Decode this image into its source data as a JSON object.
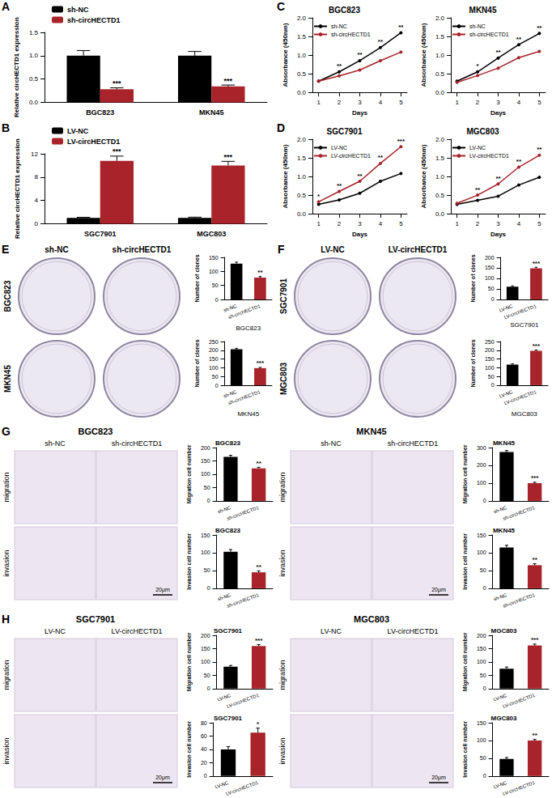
{
  "chart_data": [
    {
      "panel": "A",
      "type": "bar",
      "ylabel": "Relative circHECTD1 expression",
      "categories": [
        "BGC823",
        "MKN45"
      ],
      "series": [
        {
          "name": "sh-NC",
          "color": "#000000",
          "values": [
            1.0,
            1.0
          ],
          "errors": [
            0.11,
            0.09
          ]
        },
        {
          "name": "sh-circHECTD1",
          "color": "#a8232a",
          "values": [
            0.28,
            0.34
          ],
          "errors": [
            0.03,
            0.03
          ],
          "annotations": [
            "***",
            "***"
          ]
        }
      ],
      "ylim": [
        0,
        1.5
      ],
      "yticks": [
        {
          "value": 0,
          "label": "0.0"
        },
        0.5,
        {
          "value": 1,
          "label": "1.0"
        },
        1.5
      ],
      "grid": false,
      "legend": "upper left"
    },
    {
      "panel": "B",
      "type": "bar",
      "ylabel": "Relative circHECTD1 expression",
      "categories": [
        "SGC7901",
        "MGC803"
      ],
      "series": [
        {
          "name": "LV-NC",
          "color": "#000000",
          "values": [
            1.0,
            1.0
          ],
          "errors": [
            0.1,
            0.12
          ]
        },
        {
          "name": "LV-circHECTD1",
          "color": "#a8232a",
          "values": [
            10.8,
            10.0
          ],
          "errors": [
            0.8,
            0.7
          ],
          "annotations": [
            "***",
            "***"
          ]
        }
      ],
      "ylim": [
        0,
        12
      ],
      "yticks": [
        0,
        4,
        8,
        12
      ],
      "grid": false,
      "legend": "upper left"
    },
    {
      "panel": "C",
      "type": "line",
      "title": "BGC823",
      "xlabel": "Days",
      "ylabel": "Absorbance (450nm)",
      "x": [
        1,
        2,
        3,
        4,
        5
      ],
      "series": [
        {
          "name": "sh-NC",
          "color": "#000000",
          "marker": "circle",
          "values": [
            0.3,
            0.55,
            0.85,
            1.2,
            1.6
          ]
        },
        {
          "name": "sh-circHECTD1",
          "color": "#a8232a",
          "marker": "circle",
          "values": [
            0.3,
            0.44,
            0.6,
            0.85,
            1.08
          ]
        }
      ],
      "annotations": [
        null,
        "**",
        "**",
        "**",
        "**"
      ],
      "xlim": [
        0.7,
        5.3
      ],
      "xticks": [
        1,
        2,
        3,
        4,
        5
      ],
      "ylim": [
        0,
        2
      ],
      "yticks": [
        {
          "value": 0,
          "label": "0.0"
        },
        0.5,
        {
          "value": 1,
          "label": "1.0"
        },
        1.5,
        {
          "value": 2,
          "label": "2.0"
        }
      ],
      "grid": false,
      "legend": "upper left"
    },
    {
      "type": "line",
      "title": "MKN45",
      "xlabel": "Days",
      "ylabel": "Absorbance (450nm)",
      "x": [
        1,
        2,
        3,
        4,
        5
      ],
      "series": [
        {
          "name": "sh-NC",
          "color": "#000000",
          "marker": "circle",
          "values": [
            0.3,
            0.55,
            0.92,
            1.28,
            1.58
          ]
        },
        {
          "name": "sh-circHECTD1",
          "color": "#a8232a",
          "marker": "circle",
          "values": [
            0.27,
            0.45,
            0.65,
            0.93,
            1.1
          ]
        }
      ],
      "annotations": [
        null,
        "*",
        "**",
        "**",
        "**"
      ],
      "xlim": [
        0.7,
        5.3
      ],
      "xticks": [
        1,
        2,
        3,
        4,
        5
      ],
      "ylim": [
        0,
        2
      ],
      "yticks": [
        {
          "value": 0,
          "label": "0.0"
        },
        0.5,
        {
          "value": 1,
          "label": "1.0"
        },
        1.5,
        {
          "value": 2,
          "label": "2.0"
        }
      ],
      "grid": false,
      "legend": "upper left"
    },
    {
      "panel": "D",
      "type": "line",
      "title": "SGC7901",
      "xlabel": "Days",
      "ylabel": "Absorbance (450nm)",
      "x": [
        1,
        2,
        3,
        4,
        5
      ],
      "series": [
        {
          "name": "LV-NC",
          "color": "#000000",
          "marker": "circle",
          "values": [
            0.25,
            0.37,
            0.55,
            0.87,
            1.08
          ]
        },
        {
          "name": "LV-circHECTD1",
          "color": "#a8232a",
          "marker": "circle",
          "values": [
            0.32,
            0.6,
            0.87,
            1.35,
            1.8
          ]
        }
      ],
      "annotations": [
        "*",
        "**",
        "**",
        "**",
        "***"
      ],
      "xlim": [
        0.7,
        5.3
      ],
      "xticks": [
        1,
        2,
        3,
        4,
        5
      ],
      "ylim": [
        0,
        2
      ],
      "yticks": [
        {
          "value": 0,
          "label": "0.0"
        },
        0.5,
        {
          "value": 1,
          "label": "1.0"
        },
        1.5,
        {
          "value": 2,
          "label": "2.0"
        }
      ],
      "grid": false,
      "legend": "upper left"
    },
    {
      "type": "line",
      "title": "MGC803",
      "xlabel": "Days",
      "ylabel": "Absorbance (450nm)",
      "x": [
        1,
        2,
        3,
        4,
        5
      ],
      "series": [
        {
          "name": "LV-NC",
          "color": "#000000",
          "marker": "circle",
          "values": [
            0.25,
            0.36,
            0.47,
            0.77,
            0.98
          ]
        },
        {
          "name": "LV-circHECTD1",
          "color": "#a8232a",
          "marker": "circle",
          "values": [
            0.28,
            0.5,
            0.8,
            1.25,
            1.57
          ]
        }
      ],
      "annotations": [
        null,
        "**",
        "**",
        "**",
        "**"
      ],
      "xlim": [
        0.7,
        5.3
      ],
      "xticks": [
        1,
        2,
        3,
        4,
        5
      ],
      "ylim": [
        0,
        2
      ],
      "yticks": [
        {
          "value": 0,
          "label": "0.0"
        },
        0.5,
        {
          "value": 1,
          "label": "1.0"
        },
        1.5,
        {
          "value": 2,
          "label": "2.0"
        }
      ],
      "grid": false,
      "legend": "upper left"
    },
    {
      "type": "bar",
      "xlabel": "BGC823",
      "ylabel": "Number of clones",
      "categories": [
        "sh-NC",
        "sh-circHECTD1"
      ],
      "values": [
        128,
        78
      ],
      "errors": [
        5,
        4
      ],
      "colors": [
        "#000000",
        "#a8232a"
      ],
      "annotations": [
        null,
        "**"
      ],
      "ylim": [
        0,
        150
      ],
      "yticks": [
        0,
        50,
        100,
        150
      ],
      "grid": false
    },
    {
      "type": "bar",
      "xlabel": "MKN45",
      "ylabel": "Number of clones",
      "categories": [
        "sh-NC",
        "sh-circHECTD1"
      ],
      "values": [
        206,
        98
      ],
      "errors": [
        5,
        4
      ],
      "colors": [
        "#000000",
        "#a8232a"
      ],
      "annotations": [
        null,
        "***"
      ],
      "ylim": [
        0,
        250
      ],
      "yticks": [
        0,
        50,
        100,
        150,
        200,
        250
      ],
      "grid": false
    },
    {
      "type": "bar",
      "xlabel": "SGC7901",
      "ylabel": "Number of clones",
      "categories": [
        "LV-NC",
        "LV-circHECTD1"
      ],
      "values": [
        60,
        148
      ],
      "errors": [
        4,
        5
      ],
      "colors": [
        "#000000",
        "#a8232a"
      ],
      "annotations": [
        null,
        "***"
      ],
      "ylim": [
        0,
        200
      ],
      "yticks": [
        0,
        50,
        100,
        150,
        200
      ],
      "grid": false
    },
    {
      "type": "bar",
      "xlabel": "MGC803",
      "ylabel": "Number of clones",
      "categories": [
        "LV-NC",
        "LV-circHECTD1"
      ],
      "values": [
        118,
        197
      ],
      "errors": [
        4,
        4
      ],
      "colors": [
        "#000000",
        "#a8232a"
      ],
      "annotations": [
        null,
        "***"
      ],
      "ylim": [
        0,
        250
      ],
      "yticks": [
        0,
        50,
        100,
        150,
        200,
        250
      ],
      "grid": false
    },
    {
      "type": "bar",
      "title": "BGC823",
      "ylabel": "Migration cell number",
      "categories": [
        "sh-NC",
        "sh-circHECTD1"
      ],
      "values": [
        165,
        122
      ],
      "errors": [
        6,
        4
      ],
      "colors": [
        "#000000",
        "#a8232a"
      ],
      "annotations": [
        null,
        "**"
      ],
      "ylim": [
        0,
        200
      ],
      "yticks": [
        0,
        50,
        100,
        150,
        200
      ],
      "grid": false
    },
    {
      "type": "bar",
      "title": "BGC823",
      "ylabel": "Invasion cell number",
      "categories": [
        "sh-NC",
        "sh-circHECTD1"
      ],
      "values": [
        103,
        45
      ],
      "errors": [
        6,
        4
      ],
      "colors": [
        "#000000",
        "#a8232a"
      ],
      "annotations": [
        null,
        "**"
      ],
      "ylim": [
        0,
        150
      ],
      "yticks": [
        0,
        50,
        100,
        150
      ],
      "grid": false
    },
    {
      "type": "bar",
      "title": "MKN45",
      "ylabel": "Migration cell number",
      "categories": [
        "sh-NC",
        "sh-circHECTD1"
      ],
      "values": [
        275,
        100
      ],
      "errors": [
        8,
        5
      ],
      "colors": [
        "#000000",
        "#a8232a"
      ],
      "annotations": [
        null,
        "***"
      ],
      "ylim": [
        0,
        300
      ],
      "yticks": [
        0,
        100,
        200,
        300
      ],
      "grid": false
    },
    {
      "type": "bar",
      "title": "MKN45",
      "ylabel": "Invasion cell number",
      "categories": [
        "sh-NC",
        "sh-circHECTD1"
      ],
      "values": [
        115,
        65
      ],
      "errors": [
        6,
        4
      ],
      "colors": [
        "#000000",
        "#a8232a"
      ],
      "annotations": [
        null,
        "**"
      ],
      "ylim": [
        0,
        150
      ],
      "yticks": [
        0,
        50,
        100,
        150
      ],
      "grid": false
    },
    {
      "type": "bar",
      "title": "SGC7901",
      "ylabel": "Migration cell number",
      "categories": [
        "LV-NC",
        "LV-circHECTD1"
      ],
      "values": [
        82,
        160
      ],
      "errors": [
        5,
        5
      ],
      "colors": [
        "#000000",
        "#a8232a"
      ],
      "annotations": [
        null,
        "***"
      ],
      "ylim": [
        0,
        200
      ],
      "yticks": [
        0,
        50,
        100,
        150,
        200
      ],
      "grid": false
    },
    {
      "type": "bar",
      "title": "SGC7901",
      "ylabel": "Invasion cell number",
      "categories": [
        "LV-NC",
        "LV-circHECTD1"
      ],
      "values": [
        40,
        65
      ],
      "errors": [
        4,
        7
      ],
      "colors": [
        "#000000",
        "#a8232a"
      ],
      "annotations": [
        null,
        "*"
      ],
      "ylim": [
        0,
        80
      ],
      "yticks": [
        0,
        20,
        40,
        60,
        80
      ],
      "grid": false
    },
    {
      "type": "bar",
      "title": "MGC803",
      "ylabel": "Migration cell number",
      "categories": [
        "LV-NC",
        "LV-circHECTD1"
      ],
      "values": [
        75,
        162
      ],
      "errors": [
        6,
        5
      ],
      "colors": [
        "#000000",
        "#a8232a"
      ],
      "annotations": [
        null,
        "***"
      ],
      "ylim": [
        0,
        200
      ],
      "yticks": [
        0,
        50,
        100,
        150,
        200
      ],
      "grid": false
    },
    {
      "type": "bar",
      "title": "MGC803",
      "ylabel": "Invasion cell number",
      "categories": [
        "LV-NC",
        "LV-circHECTD1"
      ],
      "values": [
        48,
        100
      ],
      "errors": [
        4,
        3
      ],
      "colors": [
        "#000000",
        "#a8232a"
      ],
      "annotations": [
        null,
        "**"
      ],
      "ylim": [
        0,
        150
      ],
      "yticks": [
        0,
        50,
        100,
        150
      ],
      "grid": false
    }
  ],
  "image_panels": [
    {
      "panel": "E",
      "kind": "plate",
      "columns": [
        "sh-NC",
        "sh-circHECTD1"
      ],
      "rows": [
        "BGC823",
        "MKN45"
      ]
    },
    {
      "panel": "F",
      "kind": "plate",
      "columns": [
        "LV-NC",
        "LV-circHECTD1"
      ],
      "rows": [
        "SGC7901",
        "MGC803"
      ]
    },
    {
      "panel": "G",
      "kind": "micrograph",
      "title": "BGC823",
      "columns": [
        "sh-NC",
        "sh-circHECTD1"
      ],
      "rows": [
        "migration",
        "invasion"
      ],
      "scale_bar": "20μm"
    },
    {
      "kind": "micrograph",
      "title": "MKN45",
      "columns": [
        "sh-NC",
        "sh-circHECTD1"
      ],
      "rows": [
        "migration",
        "invasion"
      ],
      "scale_bar": "20μm"
    },
    {
      "panel": "H",
      "kind": "micrograph",
      "title": "SGC7901",
      "columns": [
        "LV-NC",
        "LV-circHECTD1"
      ],
      "rows": [
        "migration",
        "invasion"
      ],
      "scale_bar": "20μm"
    },
    {
      "kind": "micrograph",
      "title": "MGC803",
      "columns": [
        "LV-NC",
        "LV-circHECTD1"
      ],
      "rows": [
        "migration",
        "invasion"
      ],
      "scale_bar": "20μm"
    }
  ]
}
